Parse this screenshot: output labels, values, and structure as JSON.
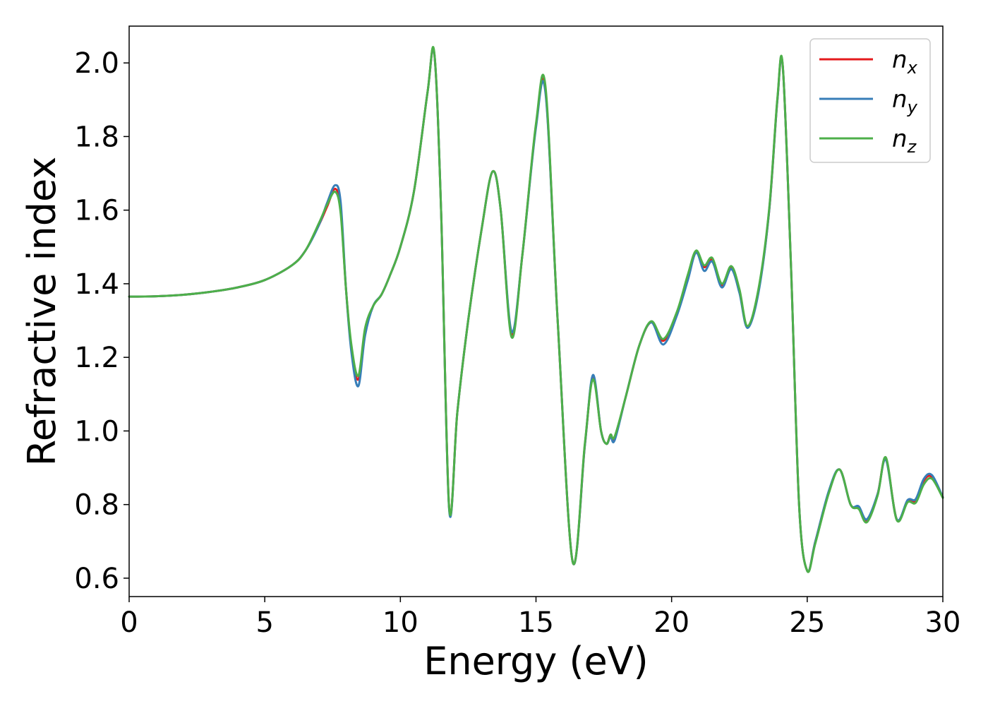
{
  "chart_data": {
    "type": "line",
    "title": "",
    "xlabel": "Energy (eV)",
    "ylabel": "Refractive index",
    "xlim": [
      0,
      30
    ],
    "ylim": [
      0.55,
      2.1
    ],
    "xticks": [
      0,
      5,
      10,
      15,
      20,
      25,
      30
    ],
    "xtick_labels": [
      "0",
      "5",
      "10",
      "15",
      "20",
      "25",
      "30"
    ],
    "yticks": [
      0.6,
      0.8,
      1.0,
      1.2,
      1.4,
      1.6,
      1.8,
      2.0
    ],
    "ytick_labels": [
      "0.6",
      "0.8",
      "1.0",
      "1.2",
      "1.4",
      "1.6",
      "1.8",
      "2.0"
    ],
    "grid": false,
    "legend_position": "top-right",
    "x": [
      0,
      1,
      2,
      3,
      4,
      5,
      6,
      6.5,
      7,
      7.3,
      7.6,
      7.8,
      8.0,
      8.2,
      8.45,
      8.7,
      9.0,
      9.3,
      9.6,
      10.0,
      10.5,
      11.0,
      11.25,
      11.5,
      11.8,
      12.1,
      12.5,
      13.0,
      13.4,
      13.7,
      14.1,
      14.5,
      15.0,
      15.35,
      15.8,
      16.35,
      16.8,
      17.1,
      17.4,
      17.6,
      17.75,
      17.9,
      18.3,
      18.8,
      19.25,
      19.7,
      20.2,
      20.6,
      20.9,
      21.2,
      21.5,
      21.85,
      22.2,
      22.5,
      22.8,
      23.2,
      23.6,
      23.9,
      24.1,
      24.4,
      24.7,
      25.0,
      25.3,
      25.8,
      26.2,
      26.6,
      26.9,
      27.2,
      27.6,
      27.9,
      28.3,
      28.7,
      29.0,
      29.3,
      29.6,
      30.0
    ],
    "series": [
      {
        "name": "n",
        "subscript": "x",
        "color": "#e41a1c",
        "values": [
          1.365,
          1.366,
          1.37,
          1.378,
          1.39,
          1.41,
          1.45,
          1.49,
          1.56,
          1.61,
          1.658,
          1.6,
          1.38,
          1.22,
          1.14,
          1.27,
          1.34,
          1.37,
          1.42,
          1.5,
          1.65,
          1.92,
          2.025,
          1.6,
          0.79,
          1.05,
          1.3,
          1.55,
          1.705,
          1.6,
          1.262,
          1.48,
          1.83,
          1.925,
          1.3,
          0.645,
          0.96,
          1.147,
          1.0,
          0.965,
          0.99,
          0.98,
          1.09,
          1.23,
          1.295,
          1.245,
          1.32,
          1.42,
          1.485,
          1.445,
          1.465,
          1.395,
          1.445,
          1.38,
          1.283,
          1.38,
          1.6,
          1.9,
          1.99,
          1.45,
          0.8,
          0.62,
          0.7,
          0.835,
          0.895,
          0.8,
          0.79,
          0.755,
          0.83,
          0.925,
          0.76,
          0.808,
          0.81,
          0.865,
          0.875,
          0.82
        ]
      },
      {
        "name": "n",
        "subscript": "y",
        "color": "#377eb8",
        "values": [
          1.365,
          1.366,
          1.37,
          1.378,
          1.39,
          1.41,
          1.45,
          1.49,
          1.56,
          1.62,
          1.668,
          1.62,
          1.38,
          1.21,
          1.122,
          1.26,
          1.34,
          1.37,
          1.42,
          1.5,
          1.65,
          1.92,
          2.025,
          1.6,
          0.785,
          1.05,
          1.3,
          1.55,
          1.705,
          1.6,
          1.27,
          1.48,
          1.825,
          1.918,
          1.3,
          0.645,
          0.96,
          1.152,
          1.0,
          0.965,
          0.985,
          0.975,
          1.09,
          1.23,
          1.295,
          1.235,
          1.315,
          1.41,
          1.485,
          1.435,
          1.46,
          1.39,
          1.44,
          1.375,
          1.28,
          1.375,
          1.6,
          1.9,
          1.99,
          1.45,
          0.8,
          0.62,
          0.7,
          0.838,
          0.895,
          0.8,
          0.795,
          0.76,
          0.83,
          0.922,
          0.76,
          0.812,
          0.815,
          0.87,
          0.88,
          0.82
        ]
      },
      {
        "name": "n",
        "subscript": "z",
        "color": "#4daf4a",
        "values": [
          1.365,
          1.366,
          1.37,
          1.378,
          1.39,
          1.41,
          1.45,
          1.49,
          1.565,
          1.615,
          1.65,
          1.59,
          1.38,
          1.23,
          1.15,
          1.28,
          1.34,
          1.37,
          1.42,
          1.5,
          1.65,
          1.92,
          2.028,
          1.6,
          0.79,
          1.05,
          1.3,
          1.55,
          1.705,
          1.6,
          1.255,
          1.48,
          1.835,
          1.935,
          1.3,
          0.645,
          0.965,
          1.14,
          1.0,
          0.965,
          0.99,
          0.985,
          1.09,
          1.23,
          1.298,
          1.25,
          1.325,
          1.425,
          1.49,
          1.45,
          1.47,
          1.4,
          1.448,
          1.385,
          1.285,
          1.385,
          1.605,
          1.905,
          1.992,
          1.45,
          0.8,
          0.62,
          0.695,
          0.832,
          0.895,
          0.8,
          0.788,
          0.752,
          0.826,
          0.928,
          0.758,
          0.806,
          0.805,
          0.855,
          0.87,
          0.818
        ]
      }
    ]
  }
}
